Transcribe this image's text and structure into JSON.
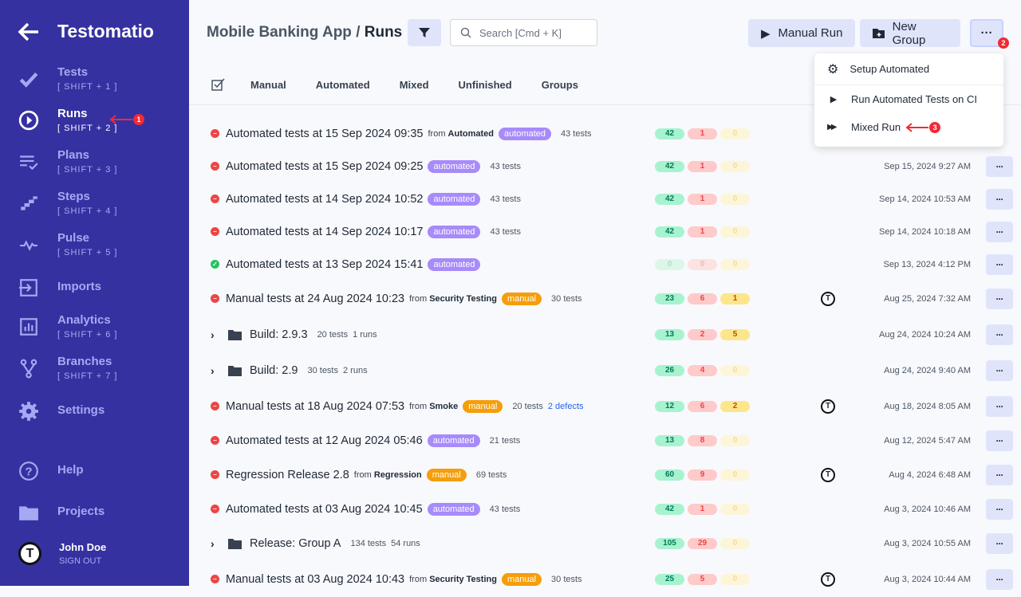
{
  "app": {
    "name": "Testomatio"
  },
  "sidebar": {
    "items": [
      {
        "label": "Tests",
        "shortcut": "[ SHIFT + 1 ]",
        "icon": "check-icon"
      },
      {
        "label": "Runs",
        "shortcut": "[ SHIFT + 2 ]",
        "icon": "play-circle-icon",
        "active": true
      },
      {
        "label": "Plans",
        "shortcut": "[ SHIFT + 3 ]",
        "icon": "plans-icon"
      },
      {
        "label": "Steps",
        "shortcut": "[ SHIFT + 4 ]",
        "icon": "steps-icon"
      },
      {
        "label": "Pulse",
        "shortcut": "[ SHIFT + 5 ]",
        "icon": "pulse-icon"
      },
      {
        "label": "Imports",
        "shortcut": "",
        "icon": "import-icon"
      },
      {
        "label": "Analytics",
        "shortcut": "[ SHIFT + 6 ]",
        "icon": "analytics-icon"
      },
      {
        "label": "Branches",
        "shortcut": "[ SHIFT + 7 ]",
        "icon": "branch-icon"
      },
      {
        "label": "Settings",
        "shortcut": "",
        "icon": "gear-icon"
      },
      {
        "label": "Help",
        "shortcut": "",
        "icon": "help-icon"
      },
      {
        "label": "Projects",
        "shortcut": "",
        "icon": "folder-icon"
      }
    ],
    "user": {
      "name": "John Doe",
      "action": "SIGN OUT"
    }
  },
  "annotations": [
    "1",
    "2",
    "3"
  ],
  "header": {
    "project": "Mobile Banking App",
    "separator": "/",
    "page": "Runs",
    "search_placeholder": "Search [Cmd + K]",
    "manual_run": "Manual Run",
    "new_group": "New Group",
    "more": "···"
  },
  "tabs": [
    "Manual",
    "Automated",
    "Mixed",
    "Unfinished",
    "Groups"
  ],
  "menu": [
    {
      "label": "Setup Automated",
      "icon": "gear-icon"
    },
    {
      "label": "Run Automated Tests on CI",
      "icon": "play-icon"
    },
    {
      "label": "Mixed Run",
      "icon": "fast-forward-icon"
    }
  ],
  "colors": {
    "sidebar": "#3631a0",
    "automated": "#a78bfa",
    "manual": "#f59e0b",
    "failed": "#ef4444",
    "passed": "#22c55e"
  },
  "runs": [
    {
      "status": "failed",
      "title": "Automated tests at 15 Sep 2024 09:35",
      "from": "Automated",
      "tag": "automated",
      "tests": "43 tests",
      "passed": "42",
      "failed": "1",
      "skipped": "0",
      "date": ""
    },
    {
      "status": "failed",
      "title": "Automated tests at 15 Sep 2024 09:25",
      "tag": "automated",
      "tests": "43 tests",
      "passed": "42",
      "failed": "1",
      "skipped": "0",
      "date": "Sep 15, 2024 9:27 AM"
    },
    {
      "status": "failed",
      "title": "Automated tests at 14 Sep 2024 10:52",
      "tag": "automated",
      "tests": "43 tests",
      "passed": "42",
      "failed": "1",
      "skipped": "0",
      "date": "Sep 14, 2024 10:53 AM"
    },
    {
      "status": "failed",
      "title": "Automated tests at 14 Sep 2024 10:17",
      "tag": "automated",
      "tests": "43 tests",
      "passed": "42",
      "failed": "1",
      "skipped": "0",
      "date": "Sep 14, 2024 10:18 AM"
    },
    {
      "status": "passed",
      "title": "Automated tests at 13 Sep 2024 15:41",
      "tag": "automated",
      "tests": "",
      "passed": "0",
      "failed": "0",
      "skipped": "0",
      "date": "Sep 13, 2024 4:12 PM"
    },
    {
      "status": "failed",
      "title": "Manual tests at 24 Aug 2024 10:23",
      "from": "Security Testing",
      "tag": "manual",
      "tests": "30 tests",
      "passed": "23",
      "failed": "6",
      "skipped": "1",
      "avatar": true,
      "date": "Aug 25, 2024 7:32 AM"
    },
    {
      "group": true,
      "title": "Build: 2.9.3",
      "tests": "20 tests",
      "runs": "1 runs",
      "passed": "13",
      "failed": "2",
      "skipped": "5",
      "date": "Aug 24, 2024 10:24 AM"
    },
    {
      "group": true,
      "title": "Build: 2.9",
      "tests": "30 tests",
      "runs": "2 runs",
      "passed": "26",
      "failed": "4",
      "skipped": "0",
      "date": "Aug 24, 2024 9:40 AM"
    },
    {
      "status": "failed",
      "title": "Manual tests at 18 Aug 2024 07:53",
      "from": "Smoke",
      "tag": "manual",
      "tests": "20 tests",
      "defects": "2 defects",
      "passed": "12",
      "failed": "6",
      "skipped": "2",
      "avatar": true,
      "date": "Aug 18, 2024 8:05 AM"
    },
    {
      "status": "failed",
      "title": "Automated tests at 12 Aug 2024 05:46",
      "tag": "automated",
      "tests": "21 tests",
      "passed": "13",
      "failed": "8",
      "skipped": "0",
      "date": "Aug 12, 2024 5:47 AM"
    },
    {
      "status": "failed",
      "title": "Regression Release 2.8",
      "from": "Regression",
      "tag": "manual",
      "tests": "69 tests",
      "passed": "60",
      "failed": "9",
      "skipped": "0",
      "avatar": true,
      "date": "Aug 4, 2024 6:48 AM"
    },
    {
      "status": "failed",
      "title": "Automated tests at 03 Aug 2024 10:45",
      "tag": "automated",
      "tests": "43 tests",
      "passed": "42",
      "failed": "1",
      "skipped": "0",
      "date": "Aug 3, 2024 10:46 AM"
    },
    {
      "group": true,
      "title": "Release: Group A",
      "tests": "134 tests",
      "runs": "54 runs",
      "passed": "105",
      "failed": "29",
      "skipped": "0",
      "date": "Aug 3, 2024 10:55 AM"
    },
    {
      "status": "failed",
      "title": "Manual tests at 03 Aug 2024 10:43",
      "from": "Security Testing",
      "tag": "manual",
      "tests": "30 tests",
      "passed": "25",
      "failed": "5",
      "skipped": "0",
      "avatar": true,
      "date": "Aug 3, 2024 10:44 AM"
    }
  ],
  "labels": {
    "from": "from"
  }
}
